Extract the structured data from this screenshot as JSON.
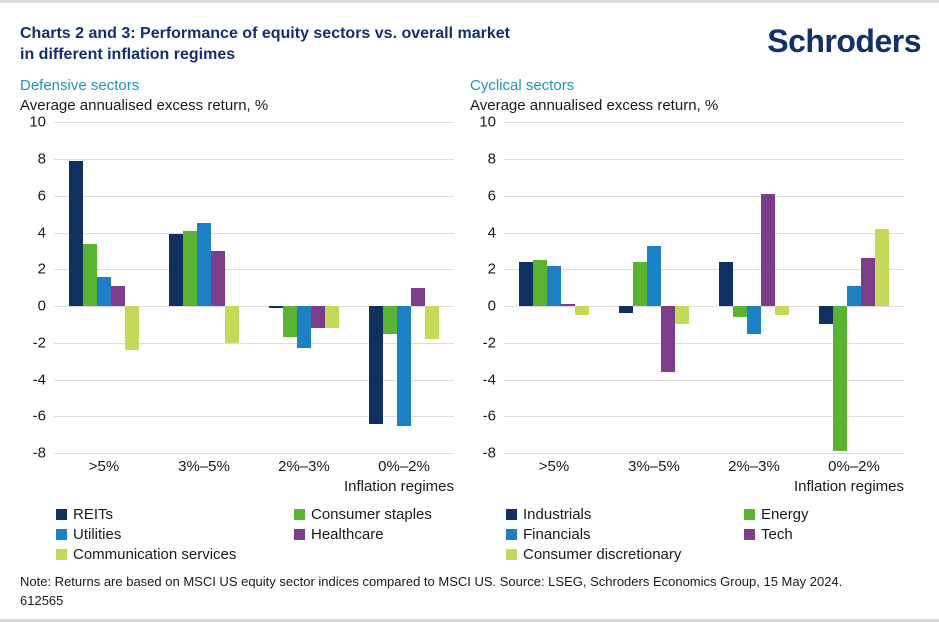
{
  "header": {
    "title_line1": "Charts 2 and 3: Performance of equity sectors vs. overall market",
    "title_line2": "in different inflation regimes",
    "logo": "Schroders"
  },
  "colors": {
    "brand_navy": "#13306b",
    "teal_subtitle": "#1f94b4",
    "gridline": "#dcdcdc"
  },
  "chart_data": [
    {
      "type": "bar",
      "title": "Defensive sectors",
      "subtitle": "Average annualised excess return, %",
      "categories": [
        ">5%",
        "3%–5%",
        "2%–3%",
        "0%–2%"
      ],
      "xlabel": "Inflation regimes",
      "ylim": [
        -8,
        10
      ],
      "ytick_step": 2,
      "grid": true,
      "legend_position": "bottom",
      "series": [
        {
          "name": "REITs",
          "color": "#0f3160",
          "values": [
            7.9,
            3.9,
            -0.1,
            -6.4
          ]
        },
        {
          "name": "Consumer staples",
          "color": "#5bb431",
          "values": [
            3.4,
            4.1,
            -1.7,
            -1.5
          ]
        },
        {
          "name": "Utilities",
          "color": "#1b80c4",
          "values": [
            1.6,
            4.5,
            -2.3,
            -6.5
          ]
        },
        {
          "name": "Healthcare",
          "color": "#7d3c8c",
          "values": [
            1.1,
            3.0,
            -1.2,
            1.0
          ]
        },
        {
          "name": "Communication services",
          "color": "#c4d957",
          "values": [
            -2.4,
            -2.0,
            -1.2,
            -1.8
          ]
        }
      ]
    },
    {
      "type": "bar",
      "title": "Cyclical sectors",
      "subtitle": "Average annualised excess return, %",
      "categories": [
        ">5%",
        "3%–5%",
        "2%–3%",
        "0%–2%"
      ],
      "xlabel": "Inflation regimes",
      "ylim": [
        -8,
        10
      ],
      "ytick_step": 2,
      "grid": true,
      "legend_position": "bottom",
      "series": [
        {
          "name": "Industrials",
          "color": "#0f3160",
          "values": [
            2.4,
            -0.4,
            2.4,
            -1.0
          ]
        },
        {
          "name": "Energy",
          "color": "#5bb431",
          "values": [
            2.5,
            2.4,
            -0.6,
            -7.9
          ]
        },
        {
          "name": "Financials",
          "color": "#1b80c4",
          "values": [
            2.2,
            3.25,
            -1.5,
            1.1
          ]
        },
        {
          "name": "Tech",
          "color": "#7d3c8c",
          "values": [
            0.1,
            -3.6,
            6.1,
            2.6
          ]
        },
        {
          "name": "Consumer discretionary",
          "color": "#c4d957",
          "values": [
            -0.5,
            -1.0,
            -0.5,
            4.2
          ]
        }
      ]
    }
  ],
  "footer": {
    "note_line1": "Note: Returns are based on MSCI US equity sector indices compared to MSCI US. Source: LSEG, Schroders Economics Group, 15 May 2024.",
    "note_line2": "612565"
  }
}
